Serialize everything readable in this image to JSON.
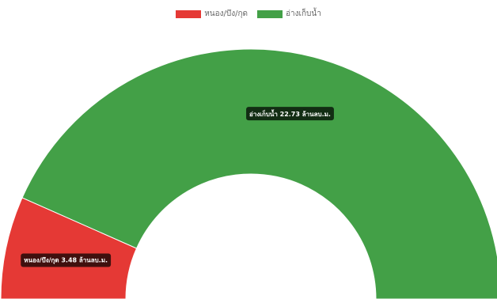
{
  "chart_data": {
    "type": "pie",
    "variant": "half-doughnut",
    "unit": "ล้านลบ.ม.",
    "categories": [
      "หนอง/บึง/กุด",
      "อ่างเก็บน้ำ"
    ],
    "values": [
      3.48,
      22.73
    ],
    "colors": [
      "#e53935",
      "#43a047"
    ],
    "legend_position": "top",
    "data_labels": [
      "หนอง/บึง/กุด 3.48 ล้านลบ.ม.",
      "อ่างเก็บน้ำ 22.73 ล้านลบ.ม."
    ]
  }
}
